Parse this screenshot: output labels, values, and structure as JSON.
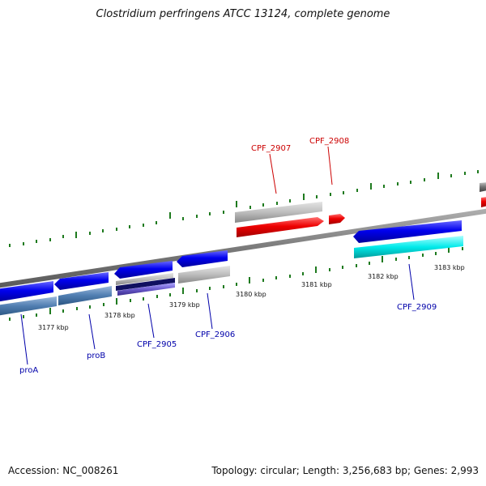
{
  "title": "Clostridium perfringens ATCC 13124, complete genome",
  "footer": {
    "accession": "Accession: NC_008261",
    "summary": "Topology: circular; Length: 3,256,683 bp; Genes: 2,993"
  },
  "colors": {
    "backbone": "#808080",
    "tick": "#1e7a1e",
    "forward_label": "#cc0000",
    "reverse_label": "#0000aa"
  },
  "scale_labels": [
    "3177 kbp",
    "3178 kbp",
    "3179 kbp",
    "3180 kbp",
    "3181 kbp",
    "3182 kbp",
    "3183 kbp"
  ],
  "gene_labels": {
    "forward": [
      "CPF_2907",
      "CPF_2908"
    ],
    "reverse": [
      "proA",
      "proB",
      "CPF_2905",
      "CPF_2906",
      "CPF_2909"
    ]
  }
}
